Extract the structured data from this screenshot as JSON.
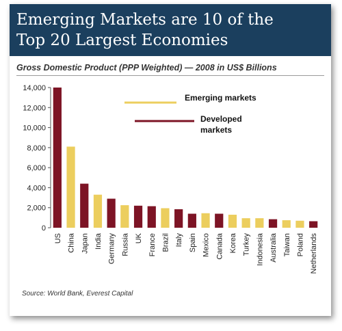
{
  "header": {
    "title_line1": "Emerging Markets are 10 of the",
    "title_line2": "Top 20 Largest Economies"
  },
  "subtitle": "Gross Domestic Product (PPP Weighted) — 2008 in US$ Billions",
  "source": "Source: World Bank, Everest Capital",
  "colors": {
    "emerging": "#ecce5e",
    "developed": "#7d1425",
    "banner": "#1b3f5e"
  },
  "chart_data": {
    "type": "bar",
    "title": "Emerging Markets are 10 of the Top 20 Largest Economies",
    "subtitle": "Gross Domestic Product (PPP Weighted) — 2008 in US$ Billions",
    "xlabel": "",
    "ylabel": "",
    "ylim": [
      0,
      14000
    ],
    "yticks": [
      0,
      2000,
      4000,
      6000,
      8000,
      10000,
      12000,
      14000
    ],
    "ytick_labels": [
      "0",
      "2,000",
      "4,000",
      "6,000",
      "8,000",
      "10,000",
      "12,000",
      "14,000"
    ],
    "grid": false,
    "legend": {
      "position": "top-right",
      "entries": [
        {
          "key": "emerging",
          "label": "Emerging markets"
        },
        {
          "key": "developed",
          "label_line1": "Developed",
          "label_line2": "markets"
        }
      ]
    },
    "categories": [
      "US",
      "China",
      "Japan",
      "India",
      "Germany",
      "Russia",
      "UK",
      "France",
      "Brazil",
      "Italy",
      "Spain",
      "Mexico",
      "Canada",
      "Korea",
      "Turkey",
      "Indonesia",
      "Australia",
      "Taiwan",
      "Poland",
      "Netherlands"
    ],
    "values": [
      14000,
      8100,
      4400,
      3300,
      2900,
      2250,
      2200,
      2150,
      1950,
      1850,
      1400,
      1450,
      1400,
      1300,
      950,
      950,
      850,
      750,
      700,
      650
    ],
    "groups": [
      "developed",
      "emerging",
      "developed",
      "emerging",
      "developed",
      "emerging",
      "developed",
      "developed",
      "emerging",
      "developed",
      "developed",
      "emerging",
      "developed",
      "emerging",
      "emerging",
      "emerging",
      "developed",
      "emerging",
      "emerging",
      "developed"
    ]
  }
}
